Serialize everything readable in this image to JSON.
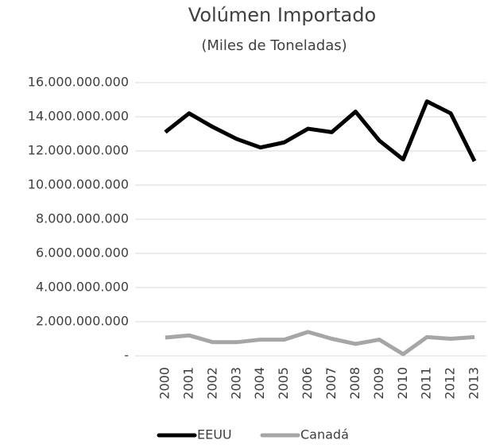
{
  "chart_data": {
    "type": "line",
    "title": "Volúmen Importado",
    "subtitle": "(Miles de Toneladas)",
    "categories": [
      "2000",
      "2001",
      "2002",
      "2003",
      "2004",
      "2005",
      "2006",
      "2007",
      "2008",
      "2009",
      "2010",
      "2011",
      "2012",
      "2013"
    ],
    "series": [
      {
        "name": "EEUU",
        "color": "#000000",
        "values": [
          13100000000,
          14200000000,
          13400000000,
          12700000000,
          12200000000,
          12500000000,
          13300000000,
          13100000000,
          14300000000,
          12600000000,
          11500000000,
          14900000000,
          14200000000,
          11400000000
        ]
      },
      {
        "name": "Canadá",
        "color": "#a6a6a6",
        "values": [
          1070000000,
          1200000000,
          800000000,
          800000000,
          950000000,
          950000000,
          1400000000,
          1000000000,
          700000000,
          950000000,
          100000000,
          1100000000,
          1000000000,
          1100000000
        ]
      }
    ],
    "ylim": [
      0,
      16000000000
    ],
    "yticks": [
      {
        "value": 0,
        "label": "-"
      },
      {
        "value": 2000000000,
        "label": "2.000.000.000"
      },
      {
        "value": 4000000000,
        "label": "4.000.000.000"
      },
      {
        "value": 6000000000,
        "label": "6.000.000.000"
      },
      {
        "value": 8000000000,
        "label": "8.000.000.000"
      },
      {
        "value": 10000000000,
        "label": "10.000.000.000"
      },
      {
        "value": 12000000000,
        "label": "12.000.000.000"
      },
      {
        "value": 14000000000,
        "label": "14.000.000.000"
      },
      {
        "value": 16000000000,
        "label": "16.000.000.000"
      }
    ],
    "grid": true,
    "legend": "bottom"
  }
}
